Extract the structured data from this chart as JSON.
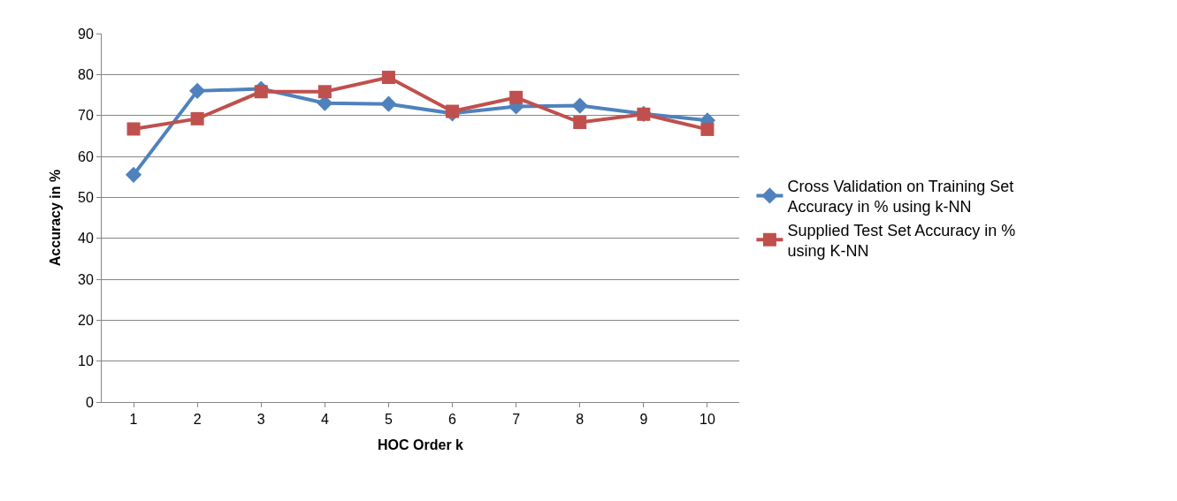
{
  "chart_data": {
    "type": "line",
    "xlabel": "HOC Order k",
    "ylabel": "Accuracy in %",
    "categories": [
      "1",
      "2",
      "3",
      "4",
      "5",
      "6",
      "7",
      "8",
      "9",
      "10"
    ],
    "series": [
      {
        "name": "Cross Validation on Training Set Accuracy in % using k-NN",
        "color": "#4f81bd",
        "marker": "diamond",
        "values": [
          55.5,
          76,
          76.5,
          73,
          72.8,
          70.5,
          72.2,
          72.4,
          70.4,
          68.8
        ]
      },
      {
        "name": "Supplied Test Set Accuracy in % using K-NN",
        "color": "#c0504d",
        "marker": "square",
        "values": [
          66.7,
          69.2,
          75.8,
          75.8,
          79.3,
          71,
          74.4,
          68.3,
          70.3,
          66.6
        ]
      }
    ],
    "ylim": [
      0,
      90
    ],
    "yticks": [
      0,
      10,
      20,
      30,
      40,
      50,
      60,
      70,
      80,
      90
    ],
    "grid": "y",
    "legend": "right"
  }
}
